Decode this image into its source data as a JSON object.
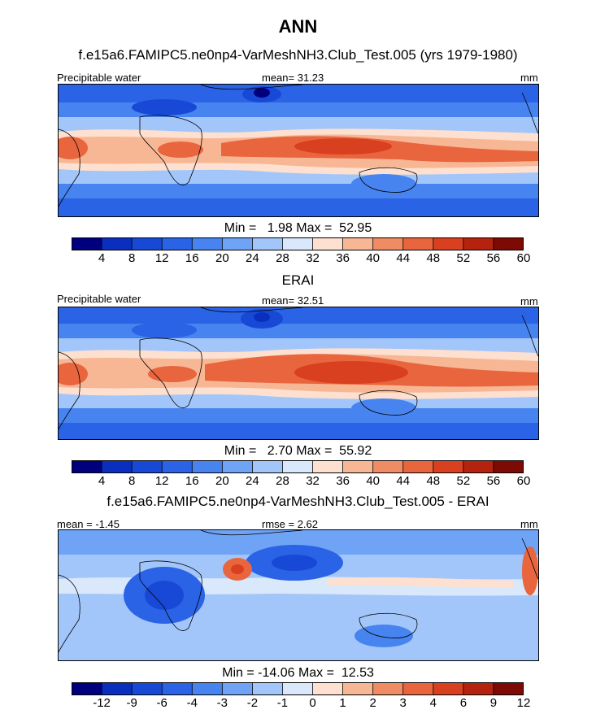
{
  "chart_data": {
    "title": "ANN",
    "variable": "Precipitable water",
    "units": "mm",
    "panels": [
      {
        "type": "heatmap",
        "subtitle": "f.e15a6.FAMIPC5.ne0np4-VarMeshNH3.Club_Test.005 (yrs 1979-1980)",
        "left_label": "Precipitable water",
        "center_label": "mean=  31.23",
        "right_label": "mm",
        "min_max": "Min =   1.98 Max =  52.95",
        "min": 1.98,
        "max": 52.95,
        "mean": 31.23,
        "colorbar_ticks": [
          "4",
          "8",
          "12",
          "16",
          "20",
          "24",
          "28",
          "32",
          "36",
          "40",
          "44",
          "48",
          "52",
          "56",
          "60"
        ]
      },
      {
        "type": "heatmap",
        "subtitle": "ERAI",
        "left_label": "Precipitable water",
        "center_label": "mean=  32.51",
        "right_label": "mm",
        "min_max": "Min =   2.70 Max =  55.92",
        "min": 2.7,
        "max": 55.92,
        "mean": 32.51,
        "colorbar_ticks": [
          "4",
          "8",
          "12",
          "16",
          "20",
          "24",
          "28",
          "32",
          "36",
          "40",
          "44",
          "48",
          "52",
          "56",
          "60"
        ]
      },
      {
        "type": "heatmap",
        "subtitle": "f.e15a6.FAMIPC5.ne0np4-VarMeshNH3.Club_Test.005 - ERAI",
        "left_label": "mean =  -1.45",
        "center_label": "rmse =   2.62",
        "right_label": "mm",
        "min_max": "Min = -14.06 Max =  12.53",
        "min": -14.06,
        "max": 12.53,
        "mean": -1.45,
        "rmse": 2.62,
        "colorbar_ticks": [
          "-12",
          "-9",
          "-6",
          "-4",
          "-3",
          "-2",
          "-1",
          "0",
          "1",
          "2",
          "3",
          "4",
          "6",
          "9",
          "12"
        ]
      }
    ],
    "colorbar_colors": [
      "#00007f",
      "#0a2fbf",
      "#1849d6",
      "#2b63e6",
      "#4784f0",
      "#6fa3f5",
      "#a3c6fa",
      "#d9e8fb",
      "#fde0cf",
      "#f7b795",
      "#f08c63",
      "#e8653e",
      "#d9401f",
      "#b5230f",
      "#7e0a04"
    ]
  }
}
